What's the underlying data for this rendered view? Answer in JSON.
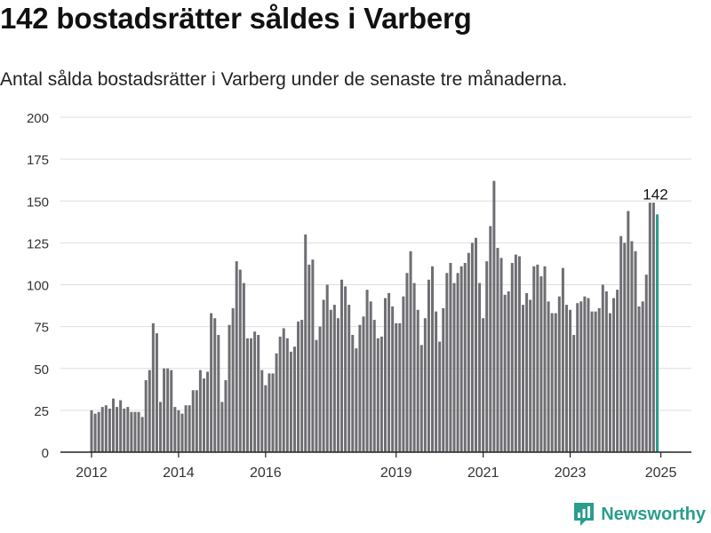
{
  "header": {
    "title": "142 bostadsrätter såldes i Varberg",
    "subtitle": "Antal sålda bostadsrätter i Varberg under de senaste tre månaderna."
  },
  "brand": {
    "name": "Newsworthy",
    "icon": "newsworthy-logo-icon",
    "color": "#2a9d8f"
  },
  "chart_data": {
    "type": "bar",
    "title": "142 bostadsrätter såldes i Varberg",
    "subtitle": "Antal sålda bostadsrätter i Varberg under de senaste tre månaderna.",
    "ylim": [
      0,
      200
    ],
    "yticks": [
      0,
      25,
      50,
      75,
      100,
      125,
      150,
      175,
      200
    ],
    "x_start": "2011-12",
    "x_interval": "month",
    "xticks": [
      {
        "label": "2012",
        "index": 0
      },
      {
        "label": "2014",
        "index": 24
      },
      {
        "label": "2016",
        "index": 48
      },
      {
        "label": "2019",
        "index": 84
      },
      {
        "label": "2021",
        "index": 108
      },
      {
        "label": "2023",
        "index": 132
      },
      {
        "label": "2025",
        "index": 157
      }
    ],
    "grid": true,
    "bar_color": "#6e6e73",
    "highlight_color": "#2a9d8f",
    "highlight_label": "142",
    "values": [
      25,
      23,
      24,
      27,
      28,
      26,
      32,
      27,
      31,
      26,
      27,
      24,
      24,
      24,
      21,
      43,
      49,
      77,
      71,
      30,
      50,
      50,
      49,
      27,
      25,
      23,
      28,
      28,
      37,
      37,
      49,
      44,
      48,
      83,
      80,
      70,
      30,
      43,
      76,
      86,
      114,
      109,
      101,
      68,
      68,
      72,
      70,
      49,
      40,
      47,
      47,
      59,
      69,
      74,
      68,
      60,
      63,
      78,
      79,
      130,
      112,
      115,
      67,
      75,
      91,
      100,
      85,
      88,
      80,
      103,
      99,
      88,
      70,
      62,
      76,
      81,
      97,
      90,
      79,
      68,
      69,
      92,
      95,
      87,
      77,
      77,
      93,
      107,
      120,
      101,
      85,
      64,
      80,
      103,
      111,
      84,
      66,
      86,
      107,
      113,
      101,
      107,
      111,
      113,
      119,
      125,
      128,
      101,
      80,
      114,
      135,
      162,
      122,
      116,
      94,
      96,
      113,
      118,
      117,
      88,
      95,
      91,
      111,
      112,
      105,
      111,
      90,
      83,
      83,
      93,
      110,
      88,
      85,
      70,
      89,
      90,
      93,
      92,
      84,
      84,
      86,
      100,
      96,
      83,
      92,
      97,
      129,
      125,
      144,
      126,
      120,
      87,
      90,
      106,
      149,
      149,
      142
    ]
  }
}
